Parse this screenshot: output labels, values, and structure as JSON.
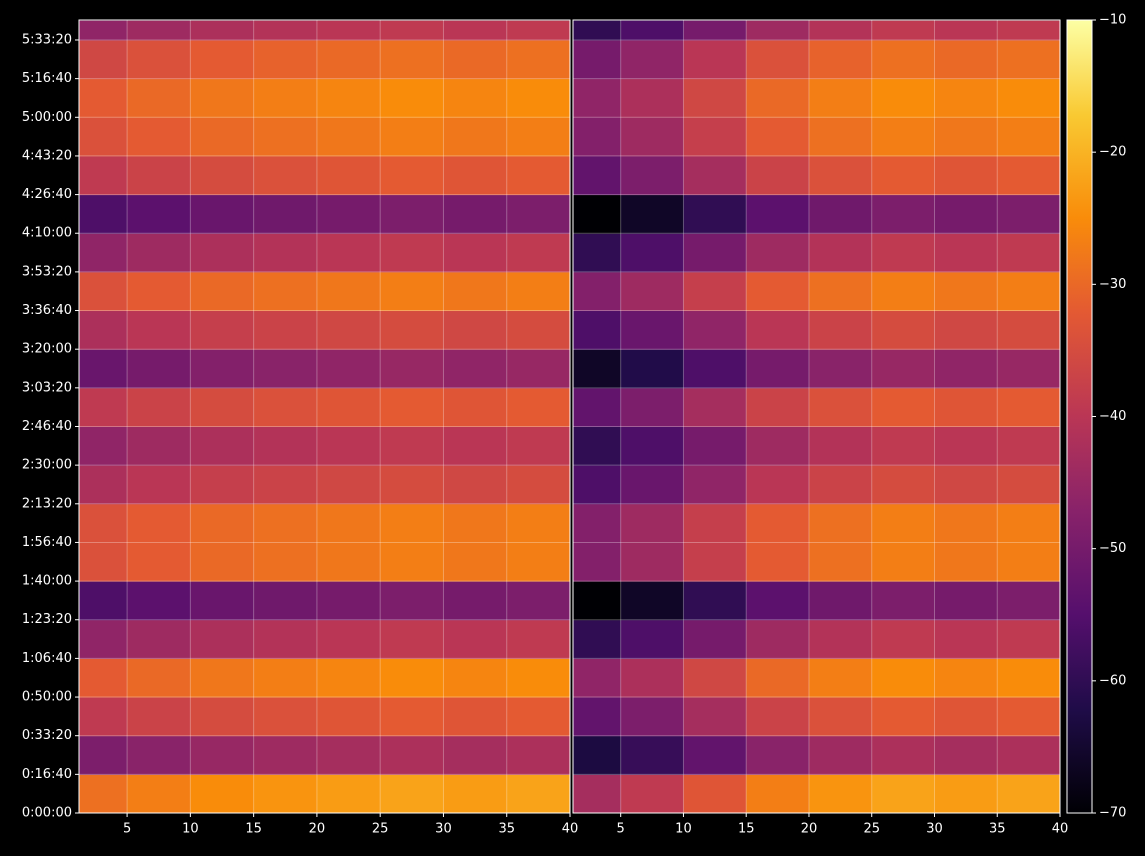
{
  "chart_data": [
    {
      "type": "heatmap",
      "xbins": [
        1,
        5,
        10,
        15,
        20,
        25,
        30,
        35,
        40
      ],
      "ybins": [
        0,
        1000,
        2000,
        3000,
        4000,
        5000,
        6000,
        7000,
        8000,
        9000,
        10000,
        11000,
        12000,
        13000,
        14000,
        15000,
        16000,
        17000,
        18000,
        19000,
        20000,
        20500
      ],
      "z": [
        [
          -29,
          -27,
          -25,
          -24,
          -23,
          -22,
          -23,
          -22
        ],
        [
          -49,
          -47,
          -45,
          -44,
          -43,
          -42,
          -43,
          -42
        ],
        [
          -39,
          -37,
          -35,
          -34,
          -33,
          -32,
          -33,
          -32
        ],
        [
          -32,
          -30,
          -28,
          -27,
          -26,
          -25,
          -26,
          -25
        ],
        [
          -46,
          -44,
          -42,
          -41,
          -40,
          -39,
          -40,
          -39
        ],
        [
          -56,
          -54,
          -52,
          -51,
          -50,
          -49,
          -50,
          -49
        ],
        [
          -34,
          -32,
          -30,
          -29,
          -28,
          -27,
          -28,
          -27
        ],
        [
          -34,
          -32,
          -30,
          -29,
          -28,
          -27,
          -28,
          -27
        ],
        [
          -42,
          -40,
          -38,
          -37,
          -36,
          -35,
          -36,
          -35
        ],
        [
          -46,
          -44,
          -42,
          -41,
          -40,
          -39,
          -40,
          -39
        ],
        [
          -39,
          -37,
          -35,
          -34,
          -33,
          -32,
          -33,
          -32
        ],
        [
          -52,
          -50,
          -48,
          -47,
          -46,
          -45,
          -46,
          -45
        ],
        [
          -42,
          -40,
          -38,
          -37,
          -36,
          -35,
          -36,
          -35
        ],
        [
          -34,
          -32,
          -30,
          -29,
          -28,
          -27,
          -28,
          -27
        ],
        [
          -46,
          -44,
          -42,
          -41,
          -40,
          -39,
          -40,
          -39
        ],
        [
          -56,
          -54,
          -52,
          -51,
          -50,
          -49,
          -50,
          -49
        ],
        [
          -39,
          -37,
          -35,
          -34,
          -33,
          -32,
          -33,
          -32
        ],
        [
          -34,
          -32,
          -30,
          -29,
          -28,
          -27,
          -28,
          -27
        ],
        [
          -32,
          -30,
          -28,
          -27,
          -26,
          -25,
          -26,
          -25
        ],
        [
          -36,
          -34,
          -32,
          -31,
          -30,
          -29,
          -30,
          -29
        ],
        [
          -46,
          -44,
          -42,
          -41,
          -40,
          -39,
          -40,
          -39
        ]
      ],
      "xlim": [
        1.2,
        40
      ],
      "ylim": [
        0,
        20517
      ],
      "xticks": [
        5,
        10,
        15,
        20,
        25,
        30,
        35,
        40
      ],
      "yticks": [
        {
          "value": 0,
          "label": "0:00:00"
        },
        {
          "value": 1000,
          "label": "0:16:40"
        },
        {
          "value": 2000,
          "label": "0:33:20"
        },
        {
          "value": 3000,
          "label": "0:50:00"
        },
        {
          "value": 4000,
          "label": "1:06:40"
        },
        {
          "value": 5000,
          "label": "1:23:20"
        },
        {
          "value": 6000,
          "label": "1:40:00"
        },
        {
          "value": 7000,
          "label": "1:56:40"
        },
        {
          "value": 8000,
          "label": "2:13:20"
        },
        {
          "value": 9000,
          "label": "2:30:00"
        },
        {
          "value": 10000,
          "label": "2:46:40"
        },
        {
          "value": 11000,
          "label": "3:03:20"
        },
        {
          "value": 12000,
          "label": "3:20:00"
        },
        {
          "value": 13000,
          "label": "3:36:40"
        },
        {
          "value": 14000,
          "label": "3:53:20"
        },
        {
          "value": 15000,
          "label": "4:10:00"
        },
        {
          "value": 16000,
          "label": "4:26:40"
        },
        {
          "value": 17000,
          "label": "4:43:20"
        },
        {
          "value": 18000,
          "label": "5:00:00"
        },
        {
          "value": 19000,
          "label": "5:16:40"
        },
        {
          "value": 20000,
          "label": "5:33:20"
        }
      ],
      "grid": true,
      "colormap": "inferno"
    },
    {
      "type": "heatmap",
      "xbins": [
        1,
        5,
        10,
        15,
        20,
        25,
        30,
        35,
        40
      ],
      "ybins": [
        0,
        1000,
        2000,
        3000,
        4000,
        5000,
        6000,
        7000,
        8000,
        9000,
        10000,
        11000,
        12000,
        13000,
        14000,
        15000,
        16000,
        17000,
        18000,
        19000,
        20000,
        20500
      ],
      "z": [
        [
          -43,
          -39,
          -33,
          -27,
          -24,
          -22,
          -23,
          -22
        ],
        [
          -63,
          -59,
          -53,
          -47,
          -44,
          -42,
          -43,
          -42
        ],
        [
          -53,
          -49,
          -43,
          -37,
          -34,
          -32,
          -33,
          -32
        ],
        [
          -46,
          -42,
          -36,
          -30,
          -27,
          -25,
          -26,
          -25
        ],
        [
          -60,
          -56,
          -50,
          -44,
          -41,
          -39,
          -40,
          -39
        ],
        [
          -70,
          -66,
          -60,
          -54,
          -51,
          -49,
          -50,
          -49
        ],
        [
          -48,
          -44,
          -38,
          -32,
          -29,
          -27,
          -28,
          -27
        ],
        [
          -48,
          -44,
          -38,
          -32,
          -29,
          -27,
          -28,
          -27
        ],
        [
          -56,
          -52,
          -46,
          -40,
          -37,
          -35,
          -36,
          -35
        ],
        [
          -60,
          -56,
          -50,
          -44,
          -41,
          -39,
          -40,
          -39
        ],
        [
          -53,
          -49,
          -43,
          -37,
          -34,
          -32,
          -33,
          -32
        ],
        [
          -66,
          -62,
          -56,
          -50,
          -47,
          -45,
          -46,
          -45
        ],
        [
          -56,
          -52,
          -46,
          -40,
          -37,
          -35,
          -36,
          -35
        ],
        [
          -48,
          -44,
          -38,
          -32,
          -29,
          -27,
          -28,
          -27
        ],
        [
          -60,
          -56,
          -50,
          -44,
          -41,
          -39,
          -40,
          -39
        ],
        [
          -70,
          -66,
          -60,
          -54,
          -51,
          -49,
          -50,
          -49
        ],
        [
          -53,
          -49,
          -43,
          -37,
          -34,
          -32,
          -33,
          -32
        ],
        [
          -48,
          -44,
          -38,
          -32,
          -29,
          -27,
          -28,
          -27
        ],
        [
          -46,
          -42,
          -36,
          -30,
          -27,
          -25,
          -26,
          -25
        ],
        [
          -50,
          -46,
          -40,
          -34,
          -31,
          -29,
          -30,
          -29
        ],
        [
          -60,
          -56,
          -50,
          -44,
          -41,
          -39,
          -40,
          -39
        ]
      ],
      "xlim": [
        1.2,
        40
      ],
      "ylim": [
        0,
        20517
      ],
      "xticks": [
        5,
        10,
        15,
        20,
        25,
        30,
        35,
        40
      ],
      "grid": true,
      "colormap": "inferno"
    }
  ],
  "colorbar": {
    "vlim": [
      -70,
      -10
    ],
    "colormap": "inferno",
    "ticks": [
      {
        "value": -70,
        "label": "−70"
      },
      {
        "value": -60,
        "label": "−60"
      },
      {
        "value": -50,
        "label": "−50"
      },
      {
        "value": -40,
        "label": "−40"
      },
      {
        "value": -30,
        "label": "−30"
      },
      {
        "value": -20,
        "label": "−20"
      },
      {
        "value": -10,
        "label": "−10"
      }
    ]
  }
}
